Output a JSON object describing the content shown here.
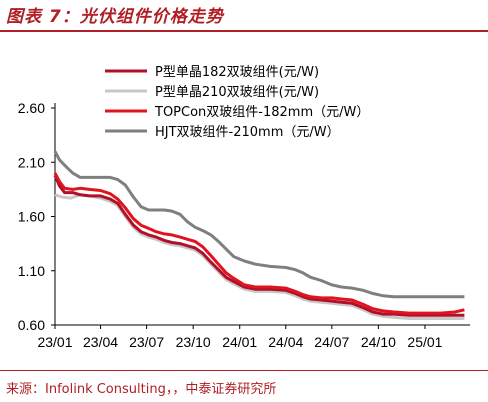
{
  "header": {
    "title": "图表 7：光伏组件价格走势"
  },
  "footer": {
    "source": "来源：Infolink Consulting，，中泰证券研究所"
  },
  "chart_data": {
    "type": "line",
    "title": "图表 7：光伏组件价格走势",
    "xlabel": "",
    "ylabel": "",
    "ylim": [
      0.6,
      2.6
    ],
    "yticks": [
      "0.60",
      "1.10",
      "1.60",
      "2.10",
      "2.60"
    ],
    "xticks": [
      "23/01",
      "23/04",
      "23/07",
      "23/10",
      "24/01",
      "24/04",
      "24/07",
      "24/10",
      "25/01"
    ],
    "x_start": "2023-01-01",
    "x_end": "2025-03-31",
    "grid": false,
    "legend_position": "top",
    "series": [
      {
        "name": "P型单晶182双玻组件(元/W)",
        "color": "#b0102a",
        "points": [
          [
            "2023-01-01",
            1.98
          ],
          [
            "2023-01-10",
            1.88
          ],
          [
            "2023-01-20",
            1.82
          ],
          [
            "2023-02-05",
            1.82
          ],
          [
            "2023-02-20",
            1.8
          ],
          [
            "2023-03-10",
            1.79
          ],
          [
            "2023-04-01",
            1.79
          ],
          [
            "2023-04-20",
            1.76
          ],
          [
            "2023-05-05",
            1.72
          ],
          [
            "2023-05-20",
            1.62
          ],
          [
            "2023-06-05",
            1.52
          ],
          [
            "2023-06-20",
            1.46
          ],
          [
            "2023-07-05",
            1.43
          ],
          [
            "2023-07-20",
            1.41
          ],
          [
            "2023-08-05",
            1.38
          ],
          [
            "2023-08-20",
            1.36
          ],
          [
            "2023-09-05",
            1.35
          ],
          [
            "2023-09-20",
            1.33
          ],
          [
            "2023-10-05",
            1.31
          ],
          [
            "2023-10-20",
            1.26
          ],
          [
            "2023-11-05",
            1.18
          ],
          [
            "2023-11-20",
            1.11
          ],
          [
            "2023-12-05",
            1.04
          ],
          [
            "2023-12-20",
            1.0
          ],
          [
            "2024-01-10",
            0.95
          ],
          [
            "2024-02-01",
            0.93
          ],
          [
            "2024-03-01",
            0.93
          ],
          [
            "2024-04-01",
            0.92
          ],
          [
            "2024-04-20",
            0.89
          ],
          [
            "2024-05-05",
            0.86
          ],
          [
            "2024-05-20",
            0.84
          ],
          [
            "2024-06-10",
            0.83
          ],
          [
            "2024-07-01",
            0.82
          ],
          [
            "2024-07-20",
            0.81
          ],
          [
            "2024-08-10",
            0.8
          ],
          [
            "2024-09-01",
            0.76
          ],
          [
            "2024-09-20",
            0.72
          ],
          [
            "2024-10-10",
            0.7
          ],
          [
            "2024-11-01",
            0.7
          ],
          [
            "2024-12-01",
            0.69
          ],
          [
            "2025-01-01",
            0.69
          ],
          [
            "2025-02-01",
            0.69
          ],
          [
            "2025-03-20",
            0.69
          ]
        ]
      },
      {
        "name": "P型单晶210双玻组件(元/W)",
        "color": "#c8c8c8",
        "points": [
          [
            "2023-01-01",
            1.8
          ],
          [
            "2023-01-15",
            1.78
          ],
          [
            "2023-02-01",
            1.77
          ],
          [
            "2023-02-20",
            1.8
          ],
          [
            "2023-03-10",
            1.79
          ],
          [
            "2023-04-01",
            1.77
          ],
          [
            "2023-04-20",
            1.74
          ],
          [
            "2023-05-05",
            1.7
          ],
          [
            "2023-05-20",
            1.6
          ],
          [
            "2023-06-05",
            1.5
          ],
          [
            "2023-06-20",
            1.44
          ],
          [
            "2023-07-05",
            1.41
          ],
          [
            "2023-07-20",
            1.39
          ],
          [
            "2023-08-05",
            1.36
          ],
          [
            "2023-08-20",
            1.34
          ],
          [
            "2023-09-05",
            1.33
          ],
          [
            "2023-09-20",
            1.31
          ],
          [
            "2023-10-05",
            1.29
          ],
          [
            "2023-10-20",
            1.24
          ],
          [
            "2023-11-05",
            1.16
          ],
          [
            "2023-11-20",
            1.09
          ],
          [
            "2023-12-05",
            1.02
          ],
          [
            "2023-12-20",
            0.98
          ],
          [
            "2024-01-10",
            0.93
          ],
          [
            "2024-02-01",
            0.91
          ],
          [
            "2024-03-01",
            0.91
          ],
          [
            "2024-04-01",
            0.9
          ],
          [
            "2024-04-20",
            0.87
          ],
          [
            "2024-05-05",
            0.84
          ],
          [
            "2024-05-20",
            0.82
          ],
          [
            "2024-06-10",
            0.81
          ],
          [
            "2024-07-01",
            0.8
          ],
          [
            "2024-07-20",
            0.79
          ],
          [
            "2024-08-10",
            0.78
          ],
          [
            "2024-09-01",
            0.74
          ],
          [
            "2024-09-20",
            0.7
          ],
          [
            "2024-10-10",
            0.68
          ],
          [
            "2024-11-01",
            0.67
          ],
          [
            "2024-12-01",
            0.66
          ],
          [
            "2025-01-01",
            0.66
          ],
          [
            "2025-02-01",
            0.66
          ],
          [
            "2025-03-20",
            0.66
          ]
        ]
      },
      {
        "name": "TOPCon双玻组件-182mm（元/W）",
        "color": "#e0141e",
        "points": [
          [
            "2023-01-01",
            2.0
          ],
          [
            "2023-01-10",
            1.92
          ],
          [
            "2023-01-20",
            1.86
          ],
          [
            "2023-02-05",
            1.85
          ],
          [
            "2023-02-20",
            1.86
          ],
          [
            "2023-03-10",
            1.85
          ],
          [
            "2023-04-01",
            1.84
          ],
          [
            "2023-04-20",
            1.81
          ],
          [
            "2023-05-05",
            1.76
          ],
          [
            "2023-05-20",
            1.68
          ],
          [
            "2023-06-05",
            1.58
          ],
          [
            "2023-06-20",
            1.52
          ],
          [
            "2023-07-05",
            1.49
          ],
          [
            "2023-07-20",
            1.46
          ],
          [
            "2023-08-05",
            1.44
          ],
          [
            "2023-08-20",
            1.43
          ],
          [
            "2023-09-05",
            1.41
          ],
          [
            "2023-09-20",
            1.39
          ],
          [
            "2023-10-05",
            1.37
          ],
          [
            "2023-10-20",
            1.32
          ],
          [
            "2023-11-05",
            1.24
          ],
          [
            "2023-11-20",
            1.16
          ],
          [
            "2023-12-05",
            1.08
          ],
          [
            "2023-12-20",
            1.03
          ],
          [
            "2024-01-10",
            0.97
          ],
          [
            "2024-02-01",
            0.95
          ],
          [
            "2024-03-01",
            0.95
          ],
          [
            "2024-04-01",
            0.94
          ],
          [
            "2024-04-20",
            0.91
          ],
          [
            "2024-05-05",
            0.88
          ],
          [
            "2024-05-20",
            0.86
          ],
          [
            "2024-06-10",
            0.85
          ],
          [
            "2024-07-01",
            0.85
          ],
          [
            "2024-07-20",
            0.84
          ],
          [
            "2024-08-10",
            0.83
          ],
          [
            "2024-09-01",
            0.79
          ],
          [
            "2024-09-20",
            0.75
          ],
          [
            "2024-10-10",
            0.73
          ],
          [
            "2024-11-01",
            0.72
          ],
          [
            "2024-12-01",
            0.71
          ],
          [
            "2025-01-01",
            0.71
          ],
          [
            "2025-02-01",
            0.71
          ],
          [
            "2025-03-01",
            0.72
          ],
          [
            "2025-03-20",
            0.74
          ]
        ]
      },
      {
        "name": "HJT双玻组件-210mm（元/W）",
        "color": "#7f7f7f",
        "points": [
          [
            "2023-01-01",
            2.2
          ],
          [
            "2023-01-10",
            2.12
          ],
          [
            "2023-01-25",
            2.05
          ],
          [
            "2023-02-05",
            2.0
          ],
          [
            "2023-02-20",
            1.96
          ],
          [
            "2023-03-10",
            1.96
          ],
          [
            "2023-04-01",
            1.96
          ],
          [
            "2023-04-20",
            1.96
          ],
          [
            "2023-05-05",
            1.94
          ],
          [
            "2023-05-20",
            1.89
          ],
          [
            "2023-06-05",
            1.78
          ],
          [
            "2023-06-20",
            1.69
          ],
          [
            "2023-07-05",
            1.66
          ],
          [
            "2023-07-20",
            1.66
          ],
          [
            "2023-08-05",
            1.66
          ],
          [
            "2023-08-20",
            1.65
          ],
          [
            "2023-09-05",
            1.62
          ],
          [
            "2023-09-20",
            1.55
          ],
          [
            "2023-10-05",
            1.5
          ],
          [
            "2023-10-20",
            1.47
          ],
          [
            "2023-11-05",
            1.43
          ],
          [
            "2023-11-20",
            1.37
          ],
          [
            "2023-12-05",
            1.3
          ],
          [
            "2023-12-20",
            1.23
          ],
          [
            "2024-01-10",
            1.19
          ],
          [
            "2024-02-01",
            1.16
          ],
          [
            "2024-03-01",
            1.14
          ],
          [
            "2024-04-01",
            1.13
          ],
          [
            "2024-04-20",
            1.11
          ],
          [
            "2024-05-05",
            1.08
          ],
          [
            "2024-05-20",
            1.04
          ],
          [
            "2024-06-10",
            1.01
          ],
          [
            "2024-07-01",
            0.97
          ],
          [
            "2024-07-20",
            0.95
          ],
          [
            "2024-08-10",
            0.94
          ],
          [
            "2024-09-01",
            0.92
          ],
          [
            "2024-09-20",
            0.89
          ],
          [
            "2024-10-10",
            0.87
          ],
          [
            "2024-11-01",
            0.86
          ],
          [
            "2024-12-01",
            0.86
          ],
          [
            "2025-01-01",
            0.86
          ],
          [
            "2025-02-01",
            0.86
          ],
          [
            "2025-03-20",
            0.86
          ]
        ]
      }
    ]
  }
}
